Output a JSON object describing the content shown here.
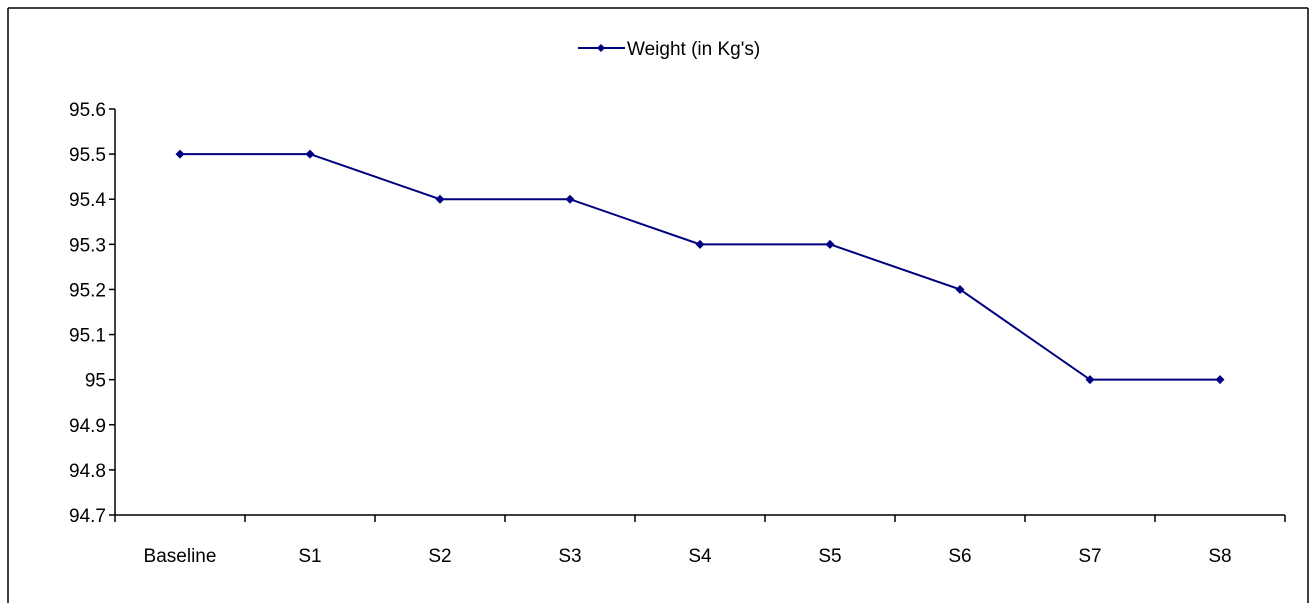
{
  "chart_data": {
    "type": "line",
    "title": "",
    "xlabel": "",
    "ylabel": "",
    "categories": [
      "Baseline",
      "S1",
      "S2",
      "S3",
      "S4",
      "S5",
      "S6",
      "S7",
      "S8"
    ],
    "series": [
      {
        "name": "Weight (in Kg's)",
        "values": [
          95.5,
          95.5,
          95.4,
          95.4,
          95.3,
          95.3,
          95.2,
          95.0,
          95.0
        ],
        "color": "#000080",
        "marker": "diamond"
      }
    ],
    "ylim": [
      94.7,
      95.6
    ],
    "y_ticks": [
      94.7,
      94.8,
      94.9,
      95,
      95.1,
      95.2,
      95.3,
      95.4,
      95.5,
      95.6
    ],
    "y_tick_labels": [
      "94.7",
      "94.8",
      "94.9",
      "95",
      "95.1",
      "95.2",
      "95.3",
      "95.4",
      "95.5",
      "95.6"
    ],
    "grid": false,
    "legend": "top-center"
  }
}
